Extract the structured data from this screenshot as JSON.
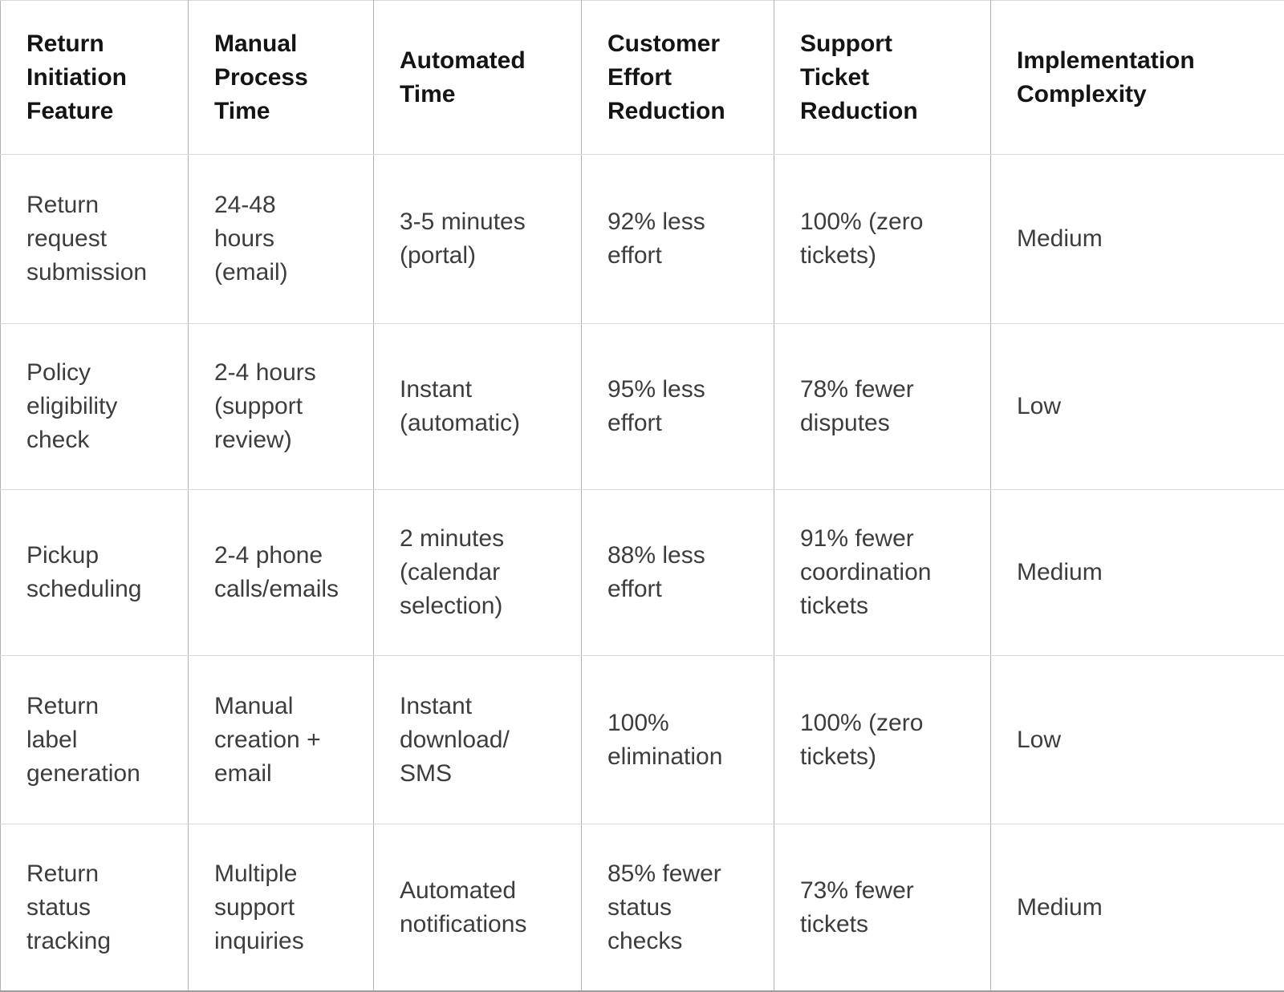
{
  "chart_data": {
    "type": "table",
    "columns": [
      "Return Initiation Feature",
      "Manual Process Time",
      "Automated Time",
      "Customer Effort Reduction",
      "Support Ticket Reduction",
      "Implementation Complexity"
    ],
    "rows": [
      [
        "Return request submission",
        "24-48 hours (email)",
        "3-5 minutes (portal)",
        "92% less effort",
        "100% (zero tickets)",
        "Medium"
      ],
      [
        "Policy eligibility check",
        "2-4 hours (support review)",
        "Instant (automatic)",
        "95% less effort",
        "78% fewer disputes",
        "Low"
      ],
      [
        "Pickup scheduling",
        "2-4 phone calls/emails",
        "2 minutes (calendar selection)",
        "88% less effort",
        "91% fewer coordination tickets",
        "Medium"
      ],
      [
        "Return label generation",
        "Manual creation + email",
        "Instant download/ SMS",
        "100% elimination",
        "100% (zero tickets)",
        "Low"
      ],
      [
        "Return status tracking",
        "Multiple support inquiries",
        "Automated notifications",
        "85% fewer status checks",
        "73% fewer tickets",
        "Medium"
      ]
    ],
    "layout": {
      "grid": true,
      "header_row_bold": true,
      "cell_text_align": "left",
      "cell_vertical_align": "middle"
    }
  },
  "colors": {
    "background": "#ffffff",
    "header_text": "#141414",
    "body_text": "#3d3d3d",
    "border_vertical": "#b2b2b2",
    "border_horizontal": "#d9d9d9",
    "border_outer": "#c6c6c6",
    "border_outer_bottom": "#9c9c9c"
  }
}
